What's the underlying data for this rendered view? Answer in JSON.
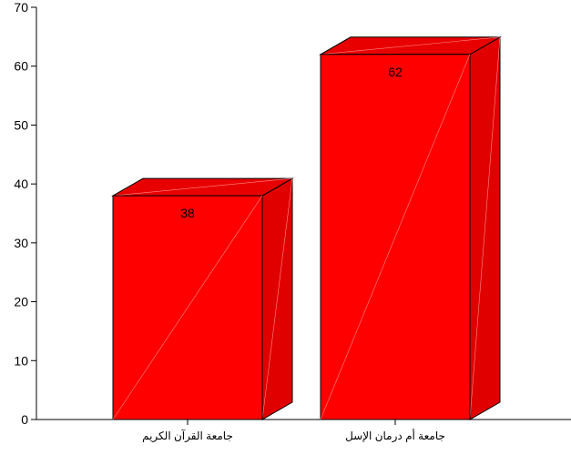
{
  "chart_data": {
    "type": "bar",
    "style": "3d",
    "categories": [
      "جامعة القرآن الكريم",
      "جامعة أم درمان الإسل"
    ],
    "values": [
      38,
      62
    ],
    "data_labels": [
      "38",
      "62"
    ],
    "ylim": [
      0,
      70
    ],
    "yticks": [
      0,
      10,
      20,
      30,
      40,
      50,
      60,
      70
    ],
    "title": "",
    "xlabel": "",
    "ylabel": "",
    "grid": false,
    "legend": "none",
    "colors": {
      "bar_front": "#ff0000",
      "bar_side": "#e00000",
      "bar_top": "#e80000",
      "outline": "#000000",
      "background": "#ffffff"
    }
  }
}
